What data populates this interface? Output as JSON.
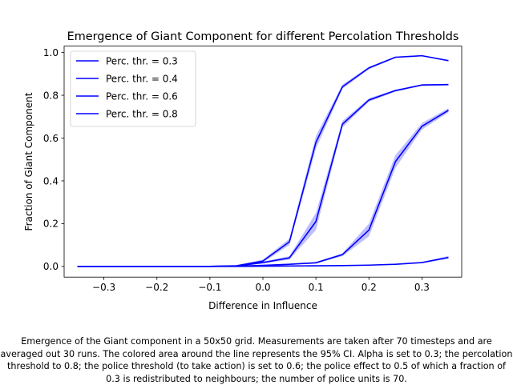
{
  "chart_data": {
    "type": "line",
    "title": "Emergence of Giant Component for different Percolation Thresholds",
    "xlabel": "Difference in Influence",
    "ylabel": "Fraction of Giant Component",
    "xlim": [
      -0.375,
      0.375
    ],
    "ylim": [
      -0.05,
      1.03
    ],
    "xticks": [
      -0.3,
      -0.2,
      -0.1,
      0.0,
      0.1,
      0.2,
      0.3
    ],
    "xtick_labels": [
      "−0.3",
      "−0.2",
      "−0.1",
      "0.0",
      "0.1",
      "0.2",
      "0.3"
    ],
    "yticks": [
      0.0,
      0.2,
      0.4,
      0.6,
      0.8,
      1.0
    ],
    "ytick_labels": [
      "0.0",
      "0.2",
      "0.4",
      "0.6",
      "0.8",
      "1.0"
    ],
    "grid": false,
    "legend_position": "top-left",
    "line_color": "#0000ff",
    "band_color": "#0000ff",
    "x": [
      -0.35,
      -0.3,
      -0.25,
      -0.2,
      -0.15,
      -0.1,
      -0.05,
      0.0,
      0.05,
      0.1,
      0.15,
      0.2,
      0.25,
      0.3,
      0.35
    ],
    "series": [
      {
        "name": "Perc. thr. = 0.3",
        "values": [
          0.0,
          0.0,
          0.0,
          0.0,
          0.0,
          0.0,
          0.003,
          0.025,
          0.115,
          0.58,
          0.84,
          0.928,
          0.978,
          0.985,
          0.962
        ],
        "ci_low": [
          0.0,
          0.0,
          0.0,
          0.0,
          0.0,
          0.0,
          0.001,
          0.018,
          0.1,
          0.55,
          0.83,
          0.922,
          0.974,
          0.982,
          0.958
        ],
        "ci_high": [
          0.0,
          0.0,
          0.0,
          0.0,
          0.0,
          0.0,
          0.005,
          0.032,
          0.13,
          0.61,
          0.85,
          0.934,
          0.981,
          0.988,
          0.966
        ]
      },
      {
        "name": "Perc. thr. = 0.4",
        "values": [
          0.0,
          0.0,
          0.0,
          0.0,
          0.0,
          0.0,
          0.002,
          0.018,
          0.04,
          0.21,
          0.665,
          0.778,
          0.822,
          0.848,
          0.85
        ],
        "ci_low": [
          0.0,
          0.0,
          0.0,
          0.0,
          0.0,
          0.0,
          0.001,
          0.013,
          0.032,
          0.17,
          0.65,
          0.77,
          0.817,
          0.844,
          0.846
        ],
        "ci_high": [
          0.0,
          0.0,
          0.0,
          0.0,
          0.0,
          0.0,
          0.003,
          0.023,
          0.048,
          0.25,
          0.68,
          0.786,
          0.827,
          0.852,
          0.854
        ]
      },
      {
        "name": "Perc. thr. = 0.6",
        "values": [
          0.0,
          0.0,
          0.0,
          0.0,
          0.0,
          0.0,
          0.001,
          0.005,
          0.01,
          0.017,
          0.055,
          0.17,
          0.49,
          0.655,
          0.73
        ],
        "ci_low": [
          0.0,
          0.0,
          0.0,
          0.0,
          0.0,
          0.0,
          0.0,
          0.003,
          0.007,
          0.013,
          0.048,
          0.14,
          0.46,
          0.64,
          0.72
        ],
        "ci_high": [
          0.0,
          0.0,
          0.0,
          0.0,
          0.0,
          0.0,
          0.002,
          0.007,
          0.013,
          0.021,
          0.062,
          0.2,
          0.52,
          0.67,
          0.74
        ]
      },
      {
        "name": "Perc. thr. = 0.8",
        "values": [
          0.0,
          0.0,
          0.0,
          0.0,
          0.0,
          0.0,
          0.0,
          0.001,
          0.002,
          0.003,
          0.004,
          0.006,
          0.01,
          0.018,
          0.042
        ],
        "ci_low": [
          0.0,
          0.0,
          0.0,
          0.0,
          0.0,
          0.0,
          0.0,
          0.0,
          0.001,
          0.002,
          0.003,
          0.005,
          0.008,
          0.015,
          0.035
        ],
        "ci_high": [
          0.0,
          0.0,
          0.0,
          0.0,
          0.0,
          0.0,
          0.0,
          0.002,
          0.003,
          0.004,
          0.005,
          0.007,
          0.012,
          0.021,
          0.049
        ]
      }
    ]
  },
  "caption": "Emergence of the Giant component in a 50x50 grid. Measurements are taken after 70 timesteps and are averaged out 30 runs. The colored area around the line represents the 95% CI. Alpha is set to 0.3; the percolation threshold to 0.8; the police threshold (to take action) is set to 0.6; the police effect to 0.5 of which a fraction of 0.3 is redistributed to neighbours; the number of police units is 70."
}
